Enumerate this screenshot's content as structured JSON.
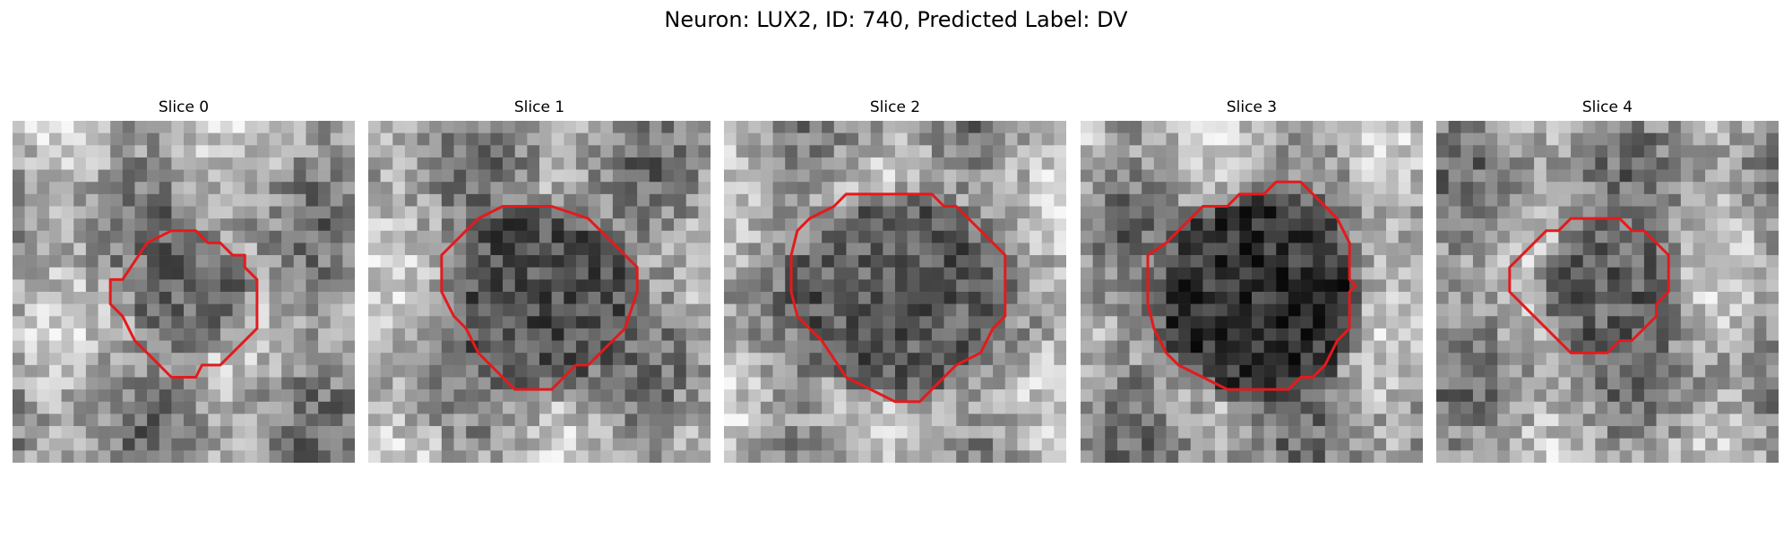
{
  "figure": {
    "title": "Neuron: LUX2, ID: 740, Predicted Label: DV"
  },
  "colors": {
    "contour": "#e41a1c",
    "background": "#ffffff"
  },
  "grid_cells": 28,
  "panels": [
    {
      "title": "Slice 0",
      "blob_center": [
        14.8,
        14.1
      ],
      "blob_radius": 4.8,
      "dark_level": 0.4,
      "contour": [
        [
          9.0,
          13.0
        ],
        [
          11.0,
          10.0
        ],
        [
          13.0,
          9.0
        ],
        [
          15.0,
          9.0
        ],
        [
          16.0,
          10.0
        ],
        [
          17.0,
          10.0
        ],
        [
          18.0,
          11.0
        ],
        [
          19.0,
          11.0
        ],
        [
          19.0,
          12.0
        ],
        [
          20.0,
          13.0
        ],
        [
          20.0,
          17.0
        ],
        [
          19.0,
          18.0
        ],
        [
          18.0,
          19.0
        ],
        [
          17.0,
          20.0
        ],
        [
          15.5,
          20.0
        ],
        [
          15.0,
          21.0
        ],
        [
          13.0,
          21.0
        ],
        [
          12.0,
          20.0
        ],
        [
          11.0,
          19.0
        ],
        [
          10.0,
          18.0
        ],
        [
          9.0,
          16.0
        ],
        [
          8.0,
          15.0
        ],
        [
          8.0,
          13.0
        ]
      ]
    },
    {
      "title": "Slice 1",
      "blob_center": [
        14.3,
        14.3
      ],
      "blob_radius": 7.5,
      "dark_level": 0.32,
      "contour": [
        [
          6.0,
          11.0
        ],
        [
          9.0,
          8.0
        ],
        [
          11.0,
          7.0
        ],
        [
          15.0,
          7.0
        ],
        [
          18.0,
          8.0
        ],
        [
          19.0,
          9.0
        ],
        [
          21.0,
          11.0
        ],
        [
          22.0,
          12.0
        ],
        [
          22.0,
          14.0
        ],
        [
          21.0,
          17.0
        ],
        [
          20.0,
          18.0
        ],
        [
          19.0,
          19.0
        ],
        [
          18.0,
          20.0
        ],
        [
          17.0,
          20.0
        ],
        [
          16.0,
          21.0
        ],
        [
          15.0,
          22.0
        ],
        [
          12.0,
          22.0
        ],
        [
          11.0,
          21.0
        ],
        [
          9.0,
          19.0
        ],
        [
          8.0,
          17.0
        ],
        [
          7.0,
          16.0
        ],
        [
          6.0,
          14.0
        ]
      ]
    },
    {
      "title": "Slice 2",
      "blob_center": [
        14.5,
        14.4
      ],
      "blob_radius": 8.5,
      "dark_level": 0.36,
      "contour": [
        [
          6.0,
          9.0
        ],
        [
          7.0,
          8.0
        ],
        [
          9.0,
          7.0
        ],
        [
          10.0,
          6.0
        ],
        [
          17.0,
          6.0
        ],
        [
          18.0,
          7.0
        ],
        [
          19.0,
          7.0
        ],
        [
          20.0,
          8.0
        ],
        [
          22.0,
          10.0
        ],
        [
          23.0,
          11.0
        ],
        [
          23.0,
          16.0
        ],
        [
          22.0,
          17.0
        ],
        [
          21.0,
          19.0
        ],
        [
          19.0,
          20.0
        ],
        [
          17.0,
          22.0
        ],
        [
          16.0,
          23.0
        ],
        [
          14.0,
          23.0
        ],
        [
          12.0,
          22.0
        ],
        [
          10.0,
          21.0
        ],
        [
          8.0,
          18.0
        ],
        [
          6.0,
          16.0
        ],
        [
          5.5,
          14.0
        ],
        [
          5.5,
          11.0
        ]
      ]
    },
    {
      "title": "Slice 3",
      "blob_center": [
        14.5,
        14.6
      ],
      "blob_radius": 8.4,
      "dark_level": 0.2,
      "contour": [
        [
          7.0,
          10.0
        ],
        [
          9.0,
          8.0
        ],
        [
          10.0,
          7.0
        ],
        [
          12.0,
          7.0
        ],
        [
          13.0,
          6.0
        ],
        [
          15.0,
          6.0
        ],
        [
          16.0,
          5.0
        ],
        [
          18.0,
          5.0
        ],
        [
          21.0,
          8.0
        ],
        [
          22.0,
          10.0
        ],
        [
          22.0,
          13.0
        ],
        [
          22.5,
          13.5
        ],
        [
          22.0,
          14.0
        ],
        [
          22.0,
          17.0
        ],
        [
          21.0,
          18.0
        ],
        [
          20.0,
          20.0
        ],
        [
          19.0,
          21.0
        ],
        [
          18.0,
          21.0
        ],
        [
          17.0,
          22.0
        ],
        [
          15.0,
          22.0
        ],
        [
          12.0,
          22.0
        ],
        [
          10.0,
          21.0
        ],
        [
          8.0,
          20.0
        ],
        [
          7.0,
          19.0
        ],
        [
          6.0,
          17.0
        ],
        [
          5.5,
          15.0
        ],
        [
          5.5,
          11.0
        ]
      ]
    },
    {
      "title": "Slice 4",
      "blob_center": [
        14.3,
        13.9
      ],
      "blob_radius": 5.8,
      "dark_level": 0.38,
      "contour": [
        [
          7.0,
          11.0
        ],
        [
          8.0,
          10.0
        ],
        [
          9.0,
          9.0
        ],
        [
          10.0,
          9.0
        ],
        [
          11.0,
          8.0
        ],
        [
          15.0,
          8.0
        ],
        [
          16.0,
          9.0
        ],
        [
          17.0,
          9.0
        ],
        [
          18.0,
          10.0
        ],
        [
          19.0,
          11.0
        ],
        [
          19.0,
          14.0
        ],
        [
          18.0,
          15.0
        ],
        [
          18.0,
          16.0
        ],
        [
          17.0,
          17.0
        ],
        [
          16.0,
          18.0
        ],
        [
          15.0,
          18.0
        ],
        [
          14.0,
          19.0
        ],
        [
          12.0,
          19.0
        ],
        [
          11.0,
          19.0
        ],
        [
          10.0,
          18.0
        ],
        [
          9.0,
          17.0
        ],
        [
          8.0,
          16.0
        ],
        [
          7.0,
          15.0
        ],
        [
          6.0,
          14.0
        ],
        [
          6.0,
          12.0
        ]
      ]
    }
  ]
}
